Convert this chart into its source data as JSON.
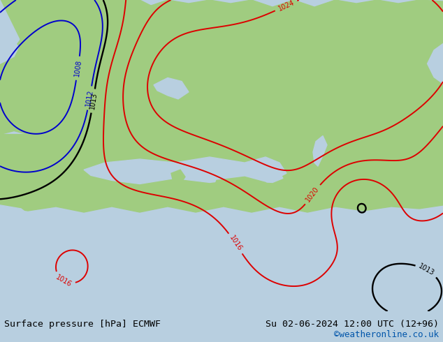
{
  "title_left": "Surface pressure [hPa] ECMWF",
  "title_right": "Su 02-06-2024 12:00 UTC (12+96)",
  "credit": "©weatheronline.co.uk",
  "bg_color": "#b8cfe0",
  "land_color": "#a0cc80",
  "bottom_bar_color": "#e8e8e8",
  "text_color_black": "#000000",
  "credit_color": "#0055aa",
  "contour_red": "#dd0000",
  "contour_blue": "#0000cc",
  "contour_black": "#000000",
  "fig_width": 6.34,
  "fig_height": 4.9,
  "dpi": 100
}
